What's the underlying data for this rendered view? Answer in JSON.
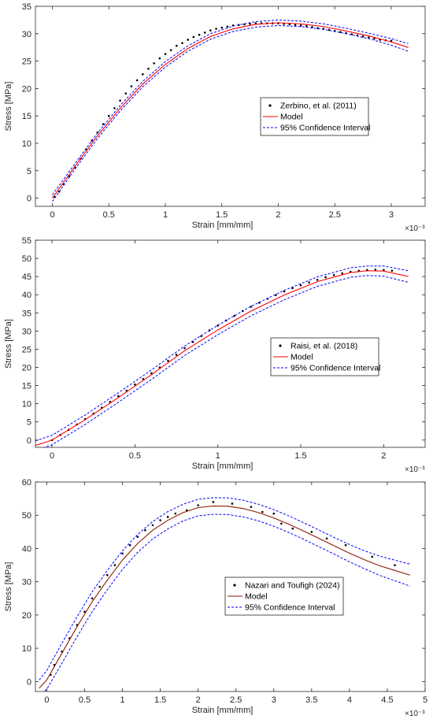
{
  "chart_data": [
    {
      "type": "line",
      "xlabel": "Strain [mm/mm]",
      "ylabel": "Stress [MPa]",
      "x_exponent": "×10⁻³",
      "xlim": [
        -0.15,
        3.3
      ],
      "ylim": [
        -1.5,
        35
      ],
      "xticks": [
        "0",
        "0.5",
        "1",
        "1.5",
        "2",
        "2.5",
        "3"
      ],
      "xtick_values": [
        0,
        0.5,
        1,
        1.5,
        2,
        2.5,
        3
      ],
      "yticks": [
        "0",
        "5",
        "10",
        "15",
        "20",
        "25",
        "30",
        "35"
      ],
      "ytick_values": [
        0,
        5,
        10,
        15,
        20,
        25,
        30,
        35
      ],
      "legend_position": "right",
      "series": [
        {
          "name": "Zerbino, et al. (2011)",
          "style": "points",
          "color": "#000000",
          "x": [
            0.02,
            0.06,
            0.1,
            0.15,
            0.2,
            0.25,
            0.3,
            0.35,
            0.4,
            0.45,
            0.5,
            0.55,
            0.6,
            0.65,
            0.7,
            0.75,
            0.8,
            0.85,
            0.9,
            0.95,
            1.0,
            1.05,
            1.1,
            1.15,
            1.2,
            1.25,
            1.3,
            1.35,
            1.4,
            1.45,
            1.5,
            1.55,
            1.6,
            1.65,
            1.7,
            1.75,
            1.8,
            1.85,
            1.9,
            1.95,
            2.0,
            2.05,
            2.1,
            2.15,
            2.2,
            2.25,
            2.3,
            2.35,
            2.4,
            2.45,
            2.5,
            2.55,
            2.6,
            2.65,
            2.7,
            2.75,
            2.8,
            2.85,
            2.9,
            2.95,
            3.0
          ],
          "y": [
            0.2,
            1.2,
            2.5,
            4.0,
            5.6,
            7.2,
            8.9,
            10.5,
            12.0,
            13.5,
            15.0,
            16.4,
            17.8,
            19.1,
            20.4,
            21.5,
            22.6,
            23.6,
            24.6,
            25.5,
            26.3,
            27.0,
            27.8,
            28.3,
            28.9,
            29.4,
            29.8,
            30.2,
            30.6,
            30.9,
            31.1,
            31.3,
            31.5,
            31.6,
            31.7,
            31.8,
            31.9,
            31.9,
            31.9,
            31.9,
            31.9,
            31.8,
            31.7,
            31.6,
            31.5,
            31.4,
            31.2,
            31.0,
            30.9,
            30.7,
            30.5,
            30.3,
            30.1,
            29.9,
            29.7,
            29.5,
            29.3,
            29.1,
            28.9,
            28.8,
            28.7
          ]
        },
        {
          "name": "Model",
          "style": "line",
          "color": "#ff0000",
          "x": [
            0,
            0.2,
            0.4,
            0.6,
            0.8,
            1.0,
            1.2,
            1.4,
            1.6,
            1.8,
            2.0,
            2.2,
            2.4,
            2.6,
            2.8,
            3.0,
            3.15
          ],
          "y": [
            0,
            5.8,
            11.4,
            16.4,
            20.8,
            24.4,
            27.3,
            29.5,
            30.9,
            31.7,
            32.0,
            31.8,
            31.3,
            30.5,
            29.6,
            28.5,
            27.5
          ]
        },
        {
          "name": "95% Confidence Interval",
          "style": "dashed",
          "color": "#0000ff",
          "x": [
            0,
            0.2,
            0.4,
            0.6,
            0.8,
            1.0,
            1.2,
            1.4,
            1.6,
            1.8,
            2.0,
            2.2,
            2.4,
            2.6,
            2.8,
            3.0,
            3.15
          ],
          "y": [
            0.6,
            6.3,
            11.9,
            16.9,
            21.3,
            24.9,
            27.8,
            30.0,
            31.4,
            32.2,
            32.5,
            32.3,
            31.8,
            31.0,
            30.1,
            29.1,
            28.2
          ]
        },
        {
          "name": "",
          "style": "dashed",
          "color": "#0000ff",
          "x": [
            0,
            0.2,
            0.4,
            0.6,
            0.8,
            1.0,
            1.2,
            1.4,
            1.6,
            1.8,
            2.0,
            2.2,
            2.4,
            2.6,
            2.8,
            3.0,
            3.15
          ],
          "y": [
            -0.6,
            5.3,
            10.9,
            15.9,
            20.3,
            23.9,
            26.8,
            29.0,
            30.4,
            31.2,
            31.5,
            31.3,
            30.8,
            30.0,
            29.1,
            27.9,
            26.8
          ]
        }
      ]
    },
    {
      "type": "line",
      "xlabel": "Strain [mm/mm]",
      "ylabel": "Stress [MPa]",
      "x_exponent": "×10⁻³",
      "xlim": [
        -0.1,
        2.25
      ],
      "ylim": [
        -2,
        55
      ],
      "xticks": [
        "0",
        "0.5",
        "1",
        "1.5",
        "2"
      ],
      "xtick_values": [
        0,
        0.5,
        1,
        1.5,
        2
      ],
      "yticks": [
        "0",
        "5",
        "10",
        "15",
        "20",
        "25",
        "30",
        "35",
        "40",
        "45",
        "50",
        "55"
      ],
      "ytick_values": [
        0,
        5,
        10,
        15,
        20,
        25,
        30,
        35,
        40,
        45,
        50,
        55
      ],
      "legend_position": "right",
      "series": [
        {
          "name": "Raisi, et al. (2018)",
          "style": "points",
          "color": "#000000",
          "x": [
            0.0,
            0.05,
            0.1,
            0.15,
            0.2,
            0.25,
            0.3,
            0.35,
            0.4,
            0.45,
            0.5,
            0.55,
            0.6,
            0.65,
            0.7,
            0.75,
            0.8,
            0.85,
            0.9,
            0.95,
            1.0,
            1.05,
            1.1,
            1.15,
            1.2,
            1.25,
            1.3,
            1.35,
            1.4,
            1.45,
            1.5,
            1.55,
            1.6,
            1.65,
            1.7,
            1.75,
            1.8,
            1.85,
            1.9,
            1.95,
            2.0,
            2.05
          ],
          "y": [
            0.0,
            1.4,
            2.8,
            4.3,
            5.8,
            7.3,
            8.9,
            10.5,
            12.1,
            13.6,
            15.3,
            16.8,
            18.4,
            20.0,
            21.8,
            23.5,
            25.3,
            27.0,
            28.6,
            30.2,
            31.5,
            32.9,
            34.2,
            35.5,
            36.7,
            37.8,
            38.9,
            39.9,
            40.9,
            41.8,
            42.6,
            43.4,
            44.1,
            44.8,
            45.4,
            45.9,
            46.3,
            46.6,
            46.8,
            46.9,
            46.8,
            46.6
          ]
        },
        {
          "name": "Model",
          "style": "line",
          "color": "#ff0000",
          "x": [
            -0.1,
            0.0,
            0.2,
            0.4,
            0.6,
            0.8,
            1.0,
            1.2,
            1.4,
            1.6,
            1.8,
            1.9,
            2.0,
            2.15
          ],
          "y": [
            -1.5,
            0.0,
            5.6,
            11.7,
            18.0,
            24.6,
            30.3,
            35.5,
            39.9,
            43.6,
            46.1,
            46.6,
            46.5,
            45.0
          ]
        },
        {
          "name": "95% Confidence Interval",
          "style": "dashed",
          "color": "#0000ff",
          "x": [
            -0.1,
            0.0,
            0.2,
            0.4,
            0.6,
            0.8,
            1.0,
            1.2,
            1.4,
            1.6,
            1.8,
            1.9,
            2.0,
            2.15
          ],
          "y": [
            -0.2,
            1.3,
            6.9,
            13.0,
            19.3,
            25.9,
            31.6,
            36.8,
            41.2,
            44.9,
            47.4,
            47.9,
            47.9,
            46.6
          ]
        },
        {
          "name": "",
          "style": "dashed",
          "color": "#0000ff",
          "x": [
            -0.1,
            0.0,
            0.2,
            0.4,
            0.6,
            0.8,
            1.0,
            1.2,
            1.4,
            1.6,
            1.8,
            1.9,
            2.0,
            2.15
          ],
          "y": [
            -2.8,
            -1.3,
            4.3,
            10.4,
            16.7,
            23.3,
            29.0,
            34.2,
            38.6,
            42.3,
            44.8,
            45.3,
            45.1,
            43.4
          ]
        }
      ]
    },
    {
      "type": "line",
      "xlabel": "Strain [mm/mm]",
      "ylabel": "Stress [MPa]",
      "x_exponent": "×10⁻³",
      "xlim": [
        -0.15,
        5.0
      ],
      "ylim": [
        -3,
        60
      ],
      "xticks": [
        "0",
        "0.5",
        "1",
        "1.5",
        "2",
        "2.5",
        "3",
        "3.5",
        "4",
        "4.5",
        "5"
      ],
      "xtick_values": [
        0,
        0.5,
        1,
        1.5,
        2,
        2.5,
        3,
        3.5,
        4,
        4.5,
        5
      ],
      "yticks": [
        "0",
        "10",
        "20",
        "30",
        "40",
        "50",
        "60"
      ],
      "ytick_values": [
        0,
        10,
        20,
        30,
        40,
        50,
        60
      ],
      "legend_position": "center",
      "series": [
        {
          "name": "Nazari and Toufigh (2024)",
          "style": "points",
          "color": "#000000",
          "x": [
            0.05,
            0.1,
            0.2,
            0.3,
            0.4,
            0.5,
            0.6,
            0.7,
            0.8,
            0.9,
            1.0,
            1.1,
            1.2,
            1.3,
            1.4,
            1.5,
            1.6,
            1.7,
            1.85,
            2.0,
            2.2,
            2.45,
            2.7,
            2.85,
            3.0,
            3.1,
            3.25,
            3.5,
            3.7,
            3.95,
            4.3,
            4.6
          ],
          "y": [
            2.0,
            5.0,
            9.0,
            13.0,
            17.0,
            21.0,
            25.0,
            28.5,
            32.0,
            35.0,
            38.5,
            41.0,
            43.5,
            45.5,
            47.0,
            48.5,
            49.5,
            50.5,
            51.5,
            53.0,
            54.0,
            53.5,
            52.5,
            51.0,
            50.5,
            47.5,
            46.0,
            45.0,
            43.0,
            41.0,
            37.5,
            35.0
          ]
        },
        {
          "name": "Model",
          "style": "line",
          "color": "#8b1a00",
          "x": [
            -0.1,
            0.0,
            0.2,
            0.4,
            0.6,
            0.8,
            1.0,
            1.2,
            1.4,
            1.6,
            1.8,
            2.0,
            2.2,
            2.4,
            2.6,
            2.8,
            3.0,
            3.2,
            3.4,
            3.6,
            3.8,
            4.0,
            4.2,
            4.4,
            4.6,
            4.8
          ],
          "y": [
            -2.0,
            0.5,
            8.5,
            16.5,
            24.0,
            30.5,
            36.5,
            41.5,
            45.5,
            48.5,
            50.8,
            52.3,
            52.8,
            52.7,
            52.0,
            50.8,
            49.2,
            47.3,
            45.2,
            43.0,
            40.8,
            38.6,
            36.6,
            34.8,
            33.4,
            32.0
          ]
        },
        {
          "name": "95% Confidence Interval",
          "style": "dashed",
          "color": "#0000ff",
          "x": [
            -0.1,
            0.0,
            0.2,
            0.4,
            0.6,
            0.8,
            1.0,
            1.2,
            1.4,
            1.6,
            1.8,
            2.0,
            2.2,
            2.4,
            2.6,
            2.8,
            3.0,
            3.2,
            3.4,
            3.6,
            3.8,
            4.0,
            4.2,
            4.4,
            4.6,
            4.8
          ],
          "y": [
            0.5,
            3.3,
            11.5,
            19.5,
            27.0,
            33.4,
            39.3,
            44.2,
            48.1,
            51.1,
            53.3,
            54.8,
            55.3,
            55.2,
            54.5,
            53.3,
            51.7,
            49.8,
            47.7,
            45.5,
            43.3,
            41.2,
            39.3,
            37.7,
            36.5,
            35.3
          ]
        },
        {
          "name": "",
          "style": "dashed",
          "color": "#0000ff",
          "x": [
            -0.1,
            0.0,
            0.2,
            0.4,
            0.6,
            0.8,
            1.0,
            1.2,
            1.4,
            1.6,
            1.8,
            2.0,
            2.2,
            2.4,
            2.6,
            2.8,
            3.0,
            3.2,
            3.4,
            3.6,
            3.8,
            4.0,
            4.2,
            4.4,
            4.6,
            4.8
          ],
          "y": [
            -4.5,
            -2.3,
            5.5,
            13.5,
            21.0,
            27.6,
            33.7,
            38.8,
            42.9,
            45.9,
            48.3,
            49.8,
            50.3,
            50.2,
            49.5,
            48.3,
            46.7,
            44.8,
            42.7,
            40.5,
            38.3,
            36.0,
            33.9,
            31.9,
            30.3,
            28.7
          ]
        }
      ]
    }
  ]
}
